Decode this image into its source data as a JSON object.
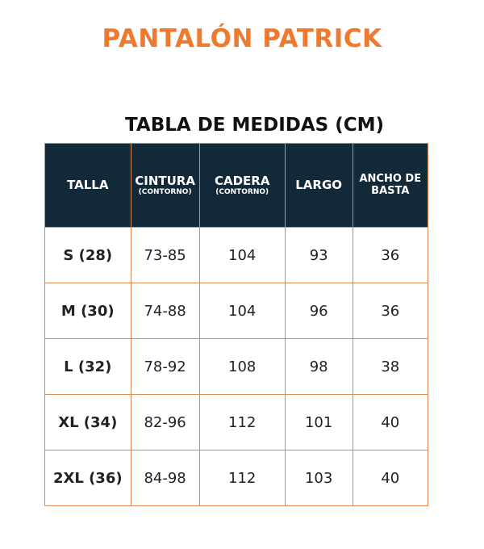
{
  "title": "PANTALÓN PATRICK",
  "subtitle": "TABLA DE MEDIDAS (CM)",
  "headers": [
    {
      "main": "TALLA",
      "sub": ""
    },
    {
      "main": "CINTURA",
      "sub": "(CONTORNO)"
    },
    {
      "main": "CADERA",
      "sub": "(CONTORNO)"
    },
    {
      "main": "LARGO",
      "sub": ""
    },
    {
      "main": "ANCHO DE BASTA",
      "sub": ""
    }
  ],
  "rows": [
    [
      "S (28)",
      "73-85",
      "104",
      "93",
      "36"
    ],
    [
      "M (30)",
      "74-88",
      "104",
      "96",
      "36"
    ],
    [
      "L (32)",
      "78-92",
      "108",
      "98",
      "38"
    ],
    [
      "XL (34)",
      "82-96",
      "112",
      "101",
      "40"
    ],
    [
      "2XL (36)",
      "84-98",
      "112",
      "103",
      "40"
    ]
  ]
}
